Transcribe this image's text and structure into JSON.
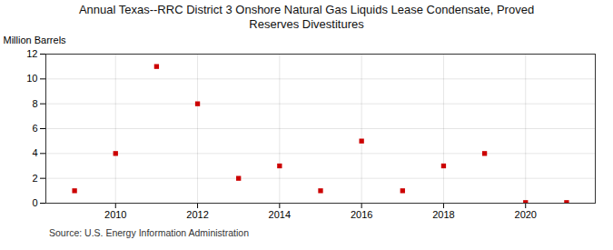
{
  "chart_data": {
    "type": "scatter",
    "title": "Annual Texas--RRC District 3 Onshore Natural Gas Liquids Lease Condensate, Proved\nReserves Divestitures",
    "ylabel": "Million Barrels",
    "annotations": [
      "Source: U.S. Energy Information Administration"
    ],
    "x": [
      2009,
      2010,
      2011,
      2012,
      2013,
      2014,
      2015,
      2016,
      2017,
      2018,
      2019,
      2020,
      2021
    ],
    "values": [
      1.0,
      4.0,
      11.0,
      8.0,
      2.0,
      3.0,
      1.0,
      5.0,
      1.0,
      3.0,
      4.0,
      0.05,
      0.05
    ],
    "color": "#cc0000",
    "marker": "square",
    "xlim": [
      2008.3,
      2021.7
    ],
    "xticks": [
      2010,
      2012,
      2014,
      2016,
      2018,
      2020
    ],
    "ylim": [
      0,
      12
    ],
    "yticks": [
      0,
      2,
      4,
      6,
      8,
      10,
      12
    ],
    "grid": true
  }
}
